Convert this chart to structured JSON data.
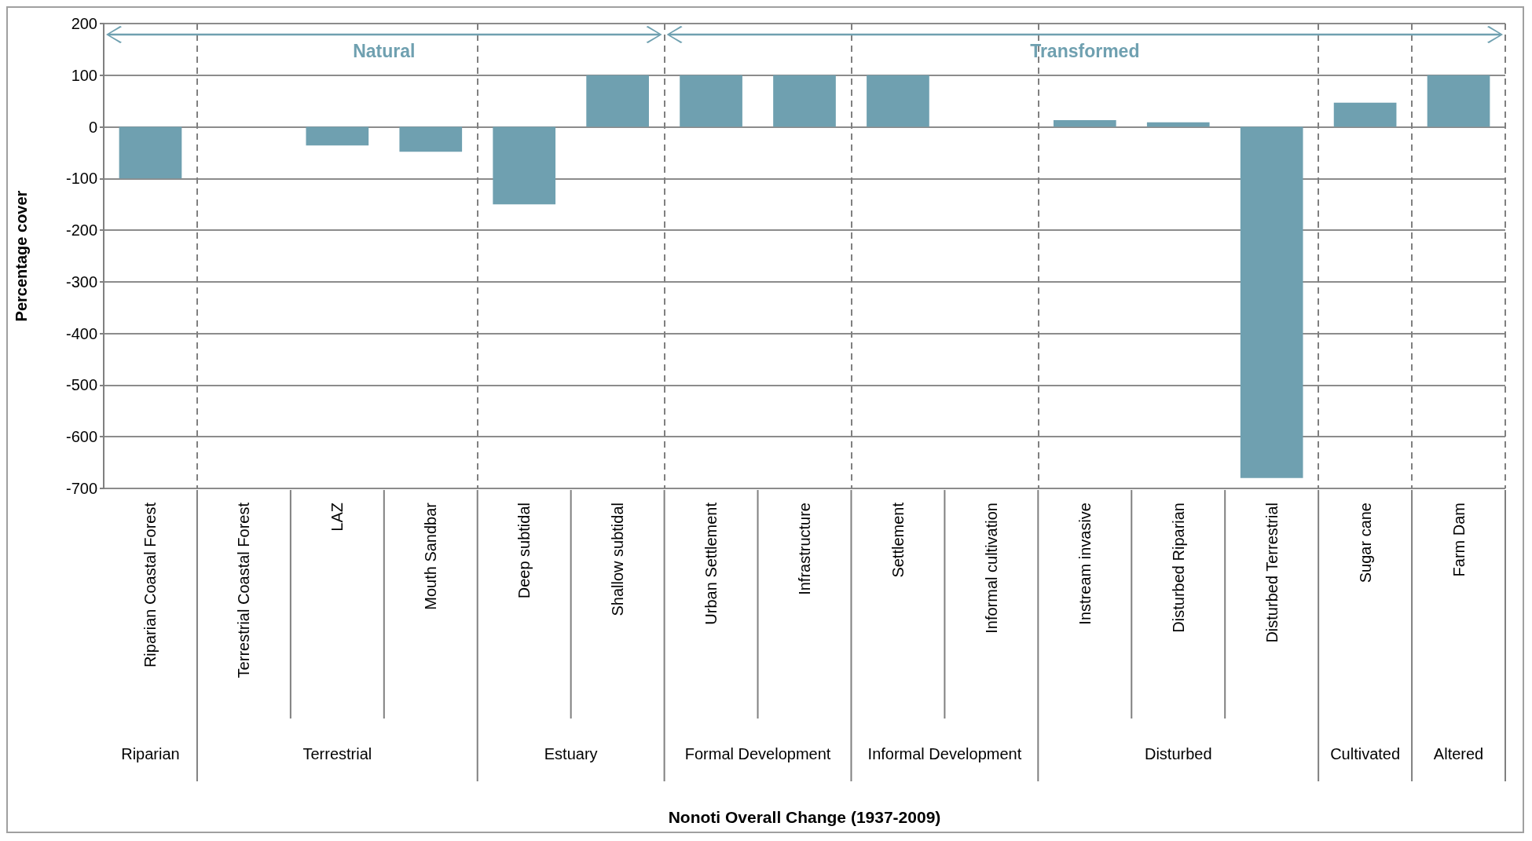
{
  "chart_data": {
    "type": "bar",
    "ylabel": "Percentage cover",
    "categories": [
      "Riparian Coastal Forest",
      "Terrestrial Coastal Forest",
      "LAZ",
      "Mouth Sandbar",
      "Deep subtidal",
      "Shallow subtidal",
      "Urban Settlement",
      "Infrastructure",
      "Settlement",
      "Informal cultivation",
      "Instream invasive",
      "Disturbed Riparian",
      "Disturbed Terrestrial",
      "Sugar cane",
      "Farm Dam"
    ],
    "values": [
      -100,
      0,
      -36,
      -48,
      -150,
      100,
      100,
      100,
      100,
      0,
      13,
      9,
      -680,
      47,
      100
    ],
    "color": "#6fa0b0",
    "ylim": [
      -700,
      200
    ],
    "yticks": [
      -700,
      -600,
      -500,
      -400,
      -300,
      -200,
      -100,
      0,
      100,
      200
    ],
    "grid": "y",
    "annotations": [
      "Natural",
      "Transformed",
      "Riparian",
      "Terrestrial",
      "Estuary",
      "Formal Development",
      "Informal Development",
      "Disturbed",
      "Cultivated",
      "Altered",
      "Nonoti Overall Change (1937-2009)"
    ]
  }
}
